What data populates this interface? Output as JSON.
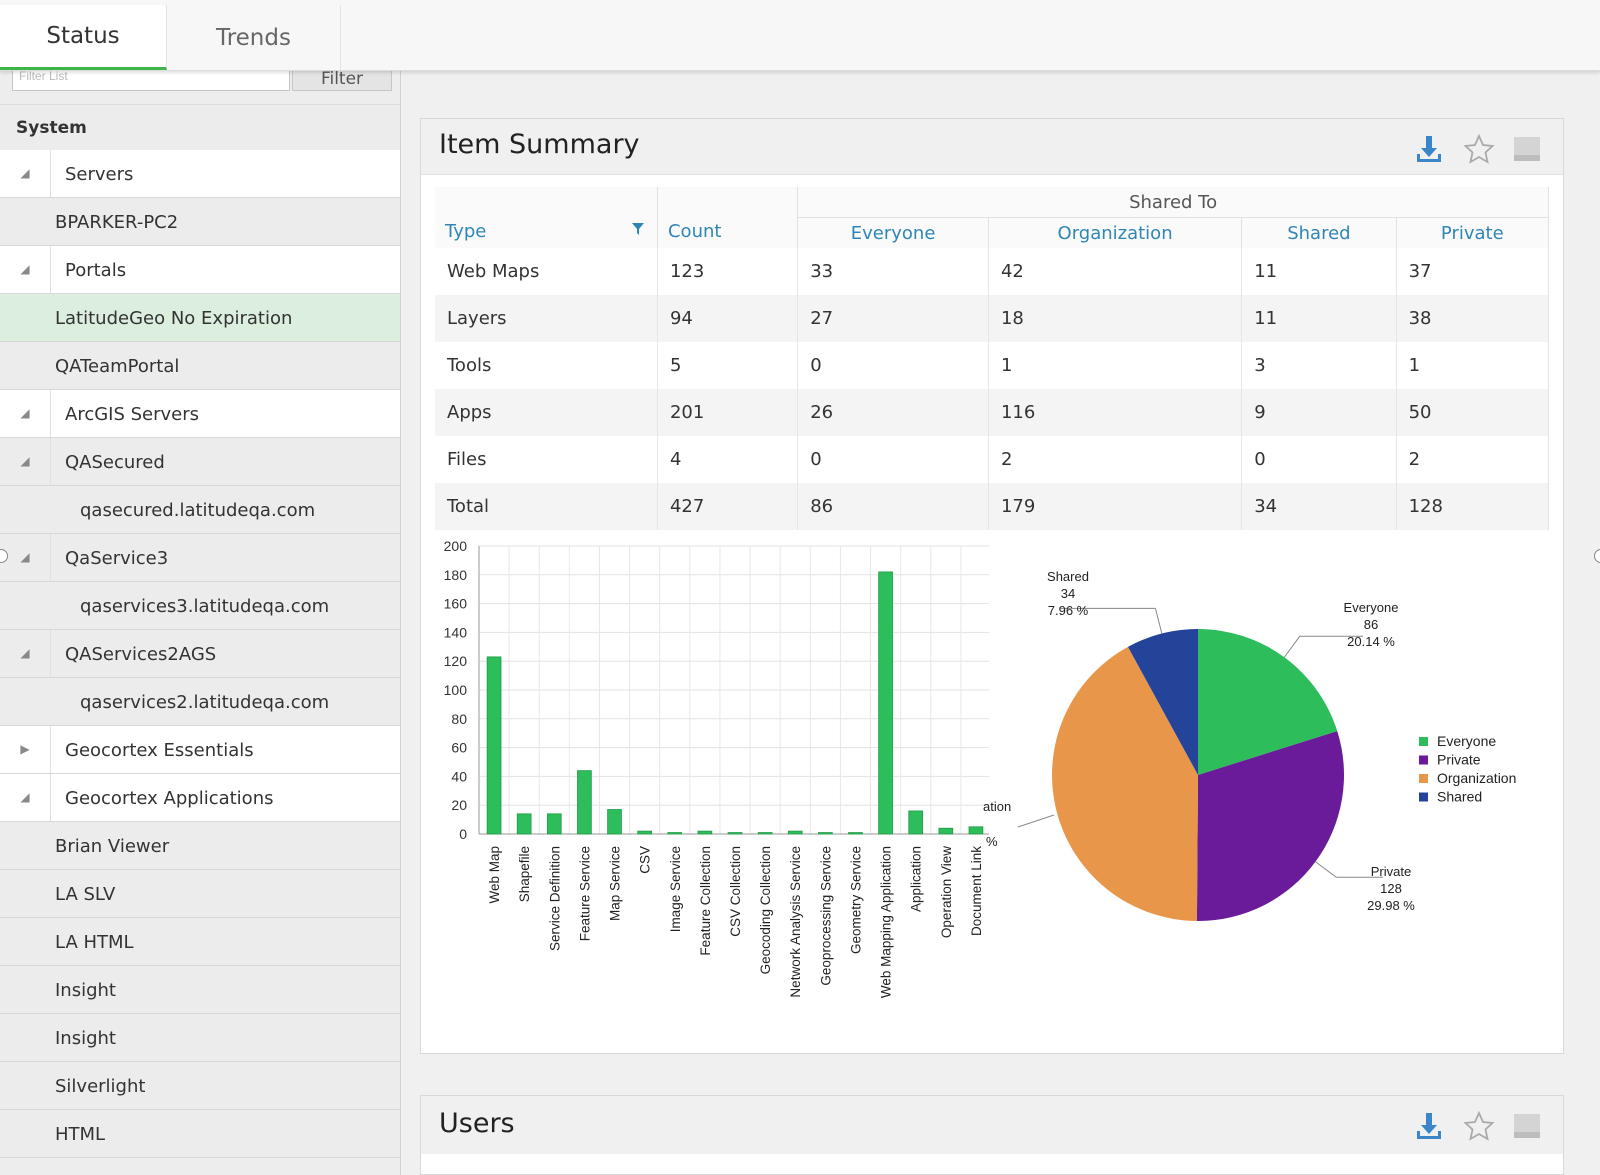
{
  "tabs": [
    {
      "label": "Status",
      "active": true
    },
    {
      "label": "Trends",
      "active": false
    }
  ],
  "filter": {
    "placeholder": "Filter List",
    "button": "Filter"
  },
  "sidebar": {
    "header": "System",
    "items": [
      {
        "label": "Servers",
        "kind": "group",
        "expanded": true
      },
      {
        "label": "BPARKER-PC2",
        "kind": "leaf"
      },
      {
        "label": "Portals",
        "kind": "group",
        "expanded": true
      },
      {
        "label": "LatitudeGeo No Expiration",
        "kind": "leaf",
        "selected": true
      },
      {
        "label": "QATeamPortal",
        "kind": "leaf"
      },
      {
        "label": "ArcGIS Servers",
        "kind": "group",
        "expanded": true
      },
      {
        "label": "QASecured",
        "kind": "subgroup",
        "expanded": true
      },
      {
        "label": "qasecured.latitudeqa.com",
        "kind": "subleaf"
      },
      {
        "label": "QaService3",
        "kind": "subgroup",
        "expanded": true
      },
      {
        "label": "qaservices3.latitudeqa.com",
        "kind": "subleaf"
      },
      {
        "label": "QAServices2AGS",
        "kind": "subgroup",
        "expanded": true
      },
      {
        "label": "qaservices2.latitudeqa.com",
        "kind": "subleaf"
      },
      {
        "label": "Geocortex Essentials",
        "kind": "group",
        "expanded": false
      },
      {
        "label": "Geocortex Applications",
        "kind": "group",
        "expanded": true
      },
      {
        "label": "Brian Viewer",
        "kind": "leaf"
      },
      {
        "label": "LA SLV",
        "kind": "leaf"
      },
      {
        "label": "LA HTML",
        "kind": "leaf"
      },
      {
        "label": "Insight",
        "kind": "leaf"
      },
      {
        "label": "Insight",
        "kind": "leaf"
      },
      {
        "label": "Silverlight",
        "kind": "leaf"
      },
      {
        "label": "HTML",
        "kind": "leaf"
      }
    ]
  },
  "item_summary": {
    "title": "Item Summary",
    "table": {
      "shared_to_label": "Shared To",
      "columns": [
        "Type",
        "Count",
        "Everyone",
        "Organization",
        "Shared",
        "Private"
      ],
      "rows": [
        [
          "Web Maps",
          "123",
          "33",
          "42",
          "11",
          "37"
        ],
        [
          "Layers",
          "94",
          "27",
          "18",
          "11",
          "38"
        ],
        [
          "Tools",
          "5",
          "0",
          "1",
          "3",
          "1"
        ],
        [
          "Apps",
          "201",
          "26",
          "116",
          "9",
          "50"
        ],
        [
          "Files",
          "4",
          "0",
          "2",
          "0",
          "2"
        ],
        [
          "Total",
          "427",
          "86",
          "179",
          "34",
          "128"
        ]
      ]
    }
  },
  "users": {
    "title": "Users"
  },
  "colors": {
    "accent_green": "#3cb54a",
    "header_blue": "#2f86b5",
    "everyone": "#2ebd5b",
    "private": "#6a1b9a",
    "organization": "#e8964a",
    "shared": "#24449a"
  },
  "icons": {
    "download": "download-icon",
    "favorite": "star-icon",
    "minimize": "minimize-icon",
    "filter": "filter-funnel-icon"
  },
  "chart_data": [
    {
      "type": "bar",
      "categories": [
        "Web Map",
        "Shapefile",
        "Service Definition",
        "Feature Service",
        "Map Service",
        "CSV",
        "Image Service",
        "Feature Collection",
        "CSV Collection",
        "Geocoding Collection",
        "Network Analysis Service",
        "Geoprocessing Service",
        "Geometry Service",
        "Web Mapping Application",
        "Application",
        "Operation View",
        "Document Link"
      ],
      "values": [
        123,
        14,
        14,
        44,
        17,
        2,
        1,
        2,
        1,
        1,
        2,
        1,
        1,
        182,
        16,
        4,
        5
      ],
      "ylim": [
        0,
        200
      ],
      "yticks": [
        0,
        20,
        40,
        60,
        80,
        100,
        120,
        140,
        160,
        180,
        200
      ],
      "grid": true,
      "color": "#2ebd5b"
    },
    {
      "type": "pie",
      "slices": [
        {
          "label": "Everyone",
          "value": 86,
          "percent": "20.14 %",
          "color": "#2ebd5b"
        },
        {
          "label": "Private",
          "value": 128,
          "percent": "29.98 %",
          "color": "#6a1b9a"
        },
        {
          "label": "Organization",
          "value": 179,
          "percent": "",
          "color": "#e8964a"
        },
        {
          "label": "Shared",
          "value": 34,
          "percent": "7.96 %",
          "color": "#24449a"
        }
      ],
      "legend": [
        "Everyone",
        "Private",
        "Organization",
        "Shared"
      ],
      "legend_placement": "right",
      "clipped_callout": {
        "label": "ation",
        "percent": "%"
      }
    }
  ]
}
